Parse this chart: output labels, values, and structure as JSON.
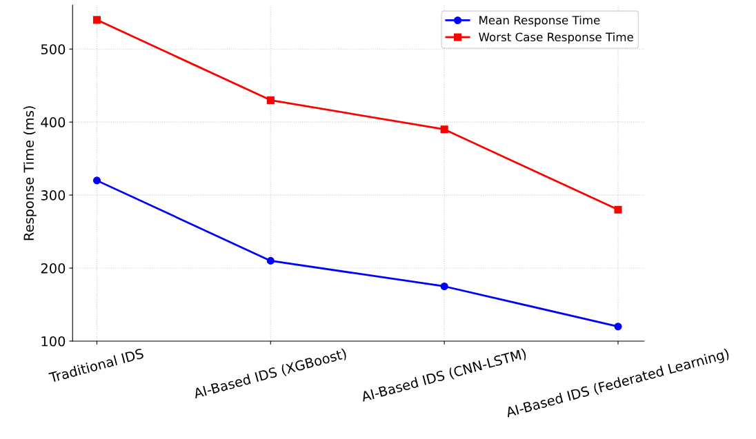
{
  "chart_data": {
    "type": "line",
    "ylabel": "Response Time (ms)",
    "categories": [
      "Traditional IDS",
      "AI-Based IDS (XGBoost)",
      "AI-Based IDS (CNN-LSTM)",
      "AI-Based IDS (Federated Learning)"
    ],
    "series": [
      {
        "name": "Mean Response Time",
        "color": "#0000ff",
        "marker": "circle",
        "values": [
          320,
          210,
          175,
          120
        ]
      },
      {
        "name": "Worst Case Response Time",
        "color": "#ff0000",
        "marker": "square",
        "values": [
          540,
          430,
          390,
          280
        ]
      }
    ],
    "ylim": [
      100,
      560
    ],
    "yticks": [
      100,
      200,
      300,
      400,
      500
    ],
    "grid": true,
    "legend": "top right",
    "line_style": "solid"
  }
}
